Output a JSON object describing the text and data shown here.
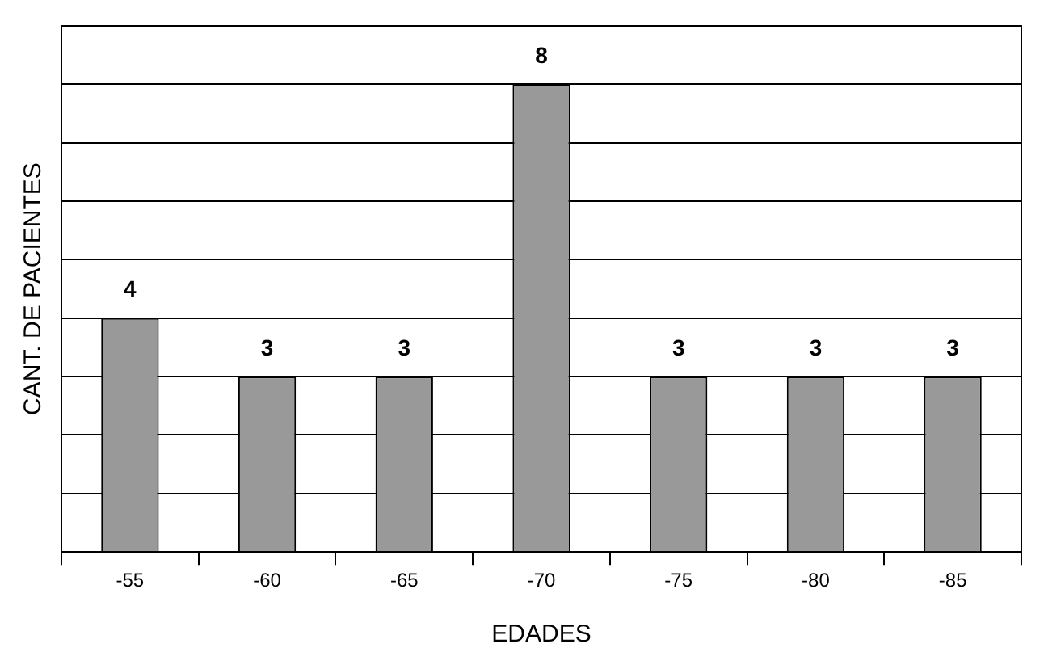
{
  "chart_data": {
    "type": "bar",
    "xlabel": "EDADES",
    "ylabel": "CANT. DE PACIENTES",
    "categories": [
      "-55",
      "-60",
      "-65",
      "-70",
      "-75",
      "-80",
      "-85"
    ],
    "values": [
      4,
      3,
      3,
      8,
      3,
      3,
      3
    ],
    "color": "#999999",
    "ylim": [
      0,
      9
    ],
    "yticks": [
      {
        "value": 0,
        "label": null
      },
      {
        "value": 1,
        "label": null
      },
      {
        "value": 2,
        "label": null
      },
      {
        "value": 3,
        "label": null
      },
      {
        "value": 4,
        "label": null
      },
      {
        "value": 5,
        "label": null
      },
      {
        "value": 6,
        "label": null
      },
      {
        "value": 7,
        "label": null
      },
      {
        "value": 8,
        "label": null
      },
      {
        "value": 9,
        "label": null
      }
    ],
    "tick_labels": "x",
    "grid": "y",
    "data_labels": true,
    "legend": false
  }
}
